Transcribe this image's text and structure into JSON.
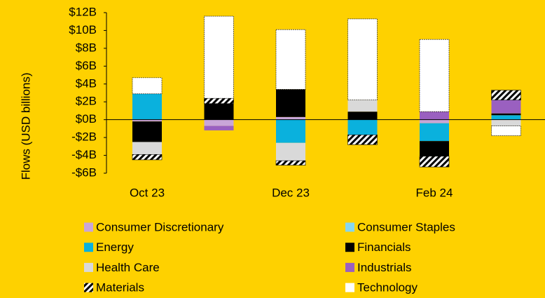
{
  "chart_data": {
    "type": "stacked_bar",
    "y_label": "Flows (USD billions)",
    "categories": [
      "Oct 23",
      null,
      "Dec 23",
      null,
      "Feb 24",
      null
    ],
    "ylim": [
      -6,
      12
    ],
    "yticks": [
      {
        "value": -6,
        "label": "-$6B"
      },
      {
        "value": -4,
        "label": "-$4B"
      },
      {
        "value": -2,
        "label": "-$2B"
      },
      {
        "value": 0,
        "label": "$0B"
      },
      {
        "value": 2,
        "label": "$2B"
      },
      {
        "value": 4,
        "label": "$4B"
      },
      {
        "value": 6,
        "label": "$6B"
      },
      {
        "value": 8,
        "label": "$8B"
      },
      {
        "value": 10,
        "label": "$10B"
      },
      {
        "value": 12,
        "label": "$12B"
      }
    ],
    "series": [
      {
        "name": "Consumer Discretionary",
        "color": "#c9a6d8",
        "values": [
          -0.2,
          -0.7,
          0.3,
          null,
          -0.4,
          null
        ]
      },
      {
        "name": "Consumer Staples",
        "color": "#86d6ee",
        "values": [
          null,
          null,
          null,
          null,
          null,
          null
        ]
      },
      {
        "name": "Energy",
        "color": "#0ab1dd",
        "values": [
          2.9,
          null,
          -2.6,
          -1.7,
          -2.0,
          0.5
        ]
      },
      {
        "name": "Financials",
        "color": "#000000",
        "values": [
          -2.3,
          1.8,
          3.1,
          0.9,
          -1.7,
          0.2
        ]
      },
      {
        "name": "Health Care",
        "color": "#d9d9d9",
        "values": [
          -1.4,
          null,
          -2.0,
          1.3,
          null,
          -0.7
        ]
      },
      {
        "name": "Industrials",
        "color": "#9a60c0",
        "values": [
          null,
          -0.5,
          null,
          null,
          0.9,
          1.5
        ]
      },
      {
        "name": "Materials",
        "color": "#000000",
        "hatch": true,
        "values": [
          -0.6,
          0.6,
          -0.5,
          -1.1,
          -1.2,
          1.1
        ]
      },
      {
        "name": "Technology",
        "color": "#ffffff",
        "values": [
          1.8,
          9.2,
          6.7,
          9.1,
          8.1,
          -1.1
        ]
      }
    ]
  }
}
